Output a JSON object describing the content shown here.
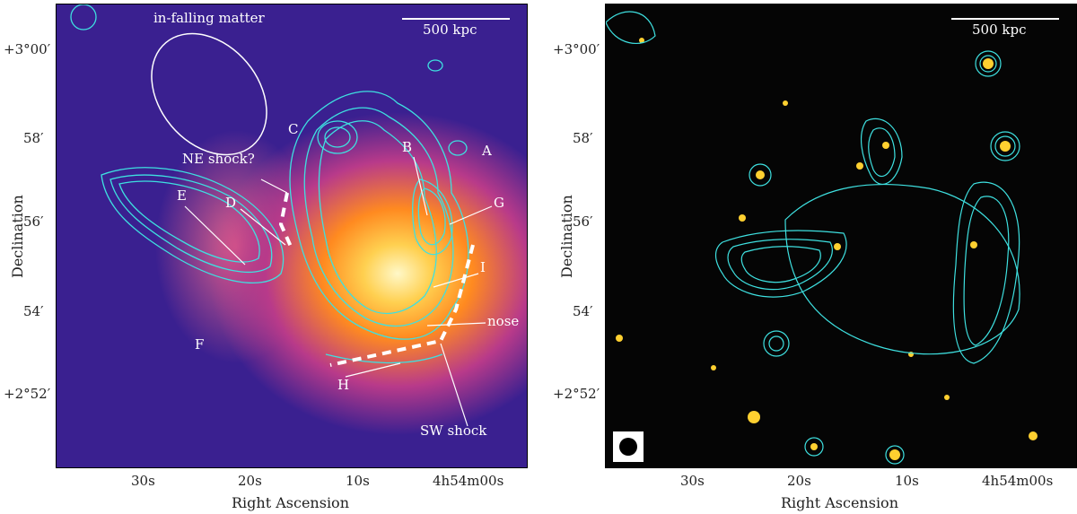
{
  "left_panel": {
    "scalebar": "500 kpc",
    "annotations": {
      "infalling": "in-falling matter",
      "A": "A",
      "B": "B",
      "C": "C",
      "D": "D",
      "E": "E",
      "F": "F",
      "G": "G",
      "H": "H",
      "I": "I",
      "ne_shock": "NE shock?",
      "nose": "nose",
      "sw_shock": "SW shock"
    }
  },
  "right_panel": {
    "scalebar": "500 kpc"
  },
  "axes": {
    "xlabel": "Right Ascension",
    "ylabel": "Declination",
    "x_ticks": [
      "30s",
      "20s",
      "10s",
      "4h54m00s"
    ],
    "y_ticks": [
      "+3°00′",
      "58′",
      "56′",
      "54′",
      "+2°52′"
    ]
  },
  "colors": {
    "contour": "#3ee0e0",
    "shock_line": "#ffffff"
  }
}
